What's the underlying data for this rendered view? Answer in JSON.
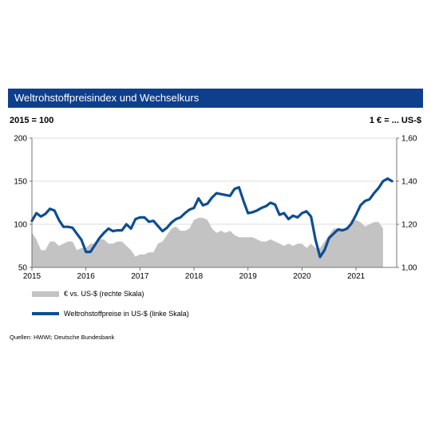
{
  "header": {
    "title": "Weltrohstoffpreisindex und Wechselkurs",
    "base_note": "2015 = 100",
    "rate_note": "1 € = ... US-$"
  },
  "legend": {
    "area_label": "€ vs. US-$ (rechte Skala)",
    "line_label": "Weltrohstoffpreise in US-$ (linke Skala)"
  },
  "source": "Quellen: HWWI; Deutsche Bundesbank",
  "colors": {
    "title_bar": "#0e3f8c",
    "line": "#0d4e93",
    "area": "#c3c3c3"
  },
  "chart_data": {
    "type": "line",
    "x_start": "2015-01",
    "x_ticks": [
      "2015",
      "2016",
      "2017",
      "2018",
      "2019",
      "2020",
      "2021"
    ],
    "y_left": {
      "min": 50,
      "max": 200,
      "ticks": [
        "50",
        "100",
        "150",
        "200"
      ]
    },
    "y_right": {
      "min": 1.0,
      "max": 1.6,
      "ticks": [
        "1,00",
        "1,20",
        "1,40",
        "1,60"
      ]
    },
    "grid": "horizontal",
    "series": [
      {
        "name": "€ vs. US-$ (rechte Skala)",
        "type": "area",
        "axis": "right",
        "values": [
          1.16,
          1.13,
          1.08,
          1.08,
          1.12,
          1.12,
          1.1,
          1.11,
          1.12,
          1.12,
          1.08,
          1.09,
          1.09,
          1.11,
          1.11,
          1.13,
          1.13,
          1.11,
          1.11,
          1.12,
          1.12,
          1.1,
          1.08,
          1.05,
          1.06,
          1.06,
          1.07,
          1.07,
          1.11,
          1.12,
          1.15,
          1.18,
          1.19,
          1.17,
          1.17,
          1.18,
          1.22,
          1.23,
          1.23,
          1.22,
          1.18,
          1.16,
          1.17,
          1.16,
          1.17,
          1.15,
          1.14,
          1.14,
          1.14,
          1.14,
          1.13,
          1.12,
          1.12,
          1.13,
          1.12,
          1.11,
          1.1,
          1.11,
          1.1,
          1.11,
          1.11,
          1.09,
          1.11,
          1.09,
          1.09,
          1.12,
          1.15,
          1.18,
          1.18,
          1.18,
          1.18,
          1.22,
          1.22,
          1.21,
          1.19,
          1.2,
          1.21,
          1.21,
          1.18
        ]
      },
      {
        "name": "Weltrohstoffpreise in US-$ (linke Skala)",
        "type": "line",
        "axis": "left",
        "values": [
          104,
          113,
          109,
          112,
          118,
          116,
          105,
          97,
          97,
          96,
          89,
          82,
          68,
          68,
          76,
          84,
          90,
          95,
          92,
          93,
          93,
          100,
          95,
          106,
          108,
          108,
          103,
          104,
          98,
          92,
          96,
          102,
          106,
          108,
          113,
          117,
          119,
          130,
          122,
          124,
          131,
          136,
          135,
          134,
          133,
          141,
          143,
          127,
          113,
          114,
          116,
          119,
          121,
          125,
          123,
          111,
          113,
          106,
          110,
          108,
          113,
          115,
          109,
          82,
          62,
          70,
          84,
          89,
          94,
          93,
          95,
          101,
          111,
          122,
          127,
          129,
          136,
          142,
          150,
          153,
          150
        ]
      }
    ]
  }
}
